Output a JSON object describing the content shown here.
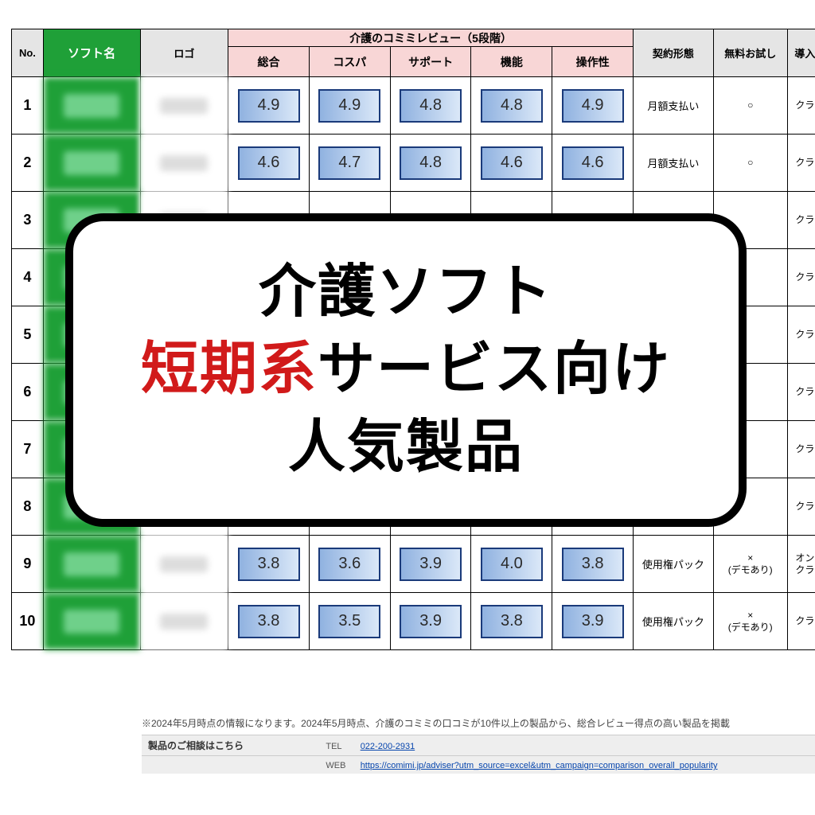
{
  "table": {
    "headers": {
      "no": "No.",
      "soft_name": "ソフト名",
      "logo": "ロゴ",
      "review_group": "介護のコミミレビュー（5段階）",
      "overall": "総合",
      "cost": "コスパ",
      "support": "サポート",
      "function": "機能",
      "usability": "操作性",
      "contract": "契約形態",
      "trial": "無料お試し",
      "deploy": "導入"
    },
    "rows": [
      {
        "no": "1",
        "scores": [
          "4.9",
          "4.9",
          "4.8",
          "4.8",
          "4.9"
        ],
        "contract": "月額支払い",
        "trial": "○",
        "deploy": "クラ"
      },
      {
        "no": "2",
        "scores": [
          "4.6",
          "4.7",
          "4.8",
          "4.6",
          "4.6"
        ],
        "contract": "月額支払い",
        "trial": "○",
        "deploy": "クラ"
      },
      {
        "no": "3",
        "scores": [
          "",
          "",
          "",
          "",
          ""
        ],
        "contract": "",
        "trial": "",
        "deploy": "クラ"
      },
      {
        "no": "4",
        "scores": [
          "",
          "",
          "",
          "",
          ""
        ],
        "contract": "",
        "trial": "",
        "deploy": "クラ"
      },
      {
        "no": "5",
        "scores": [
          "",
          "",
          "",
          "",
          ""
        ],
        "contract": "",
        "trial": "",
        "deploy": "クラ"
      },
      {
        "no": "6",
        "scores": [
          "",
          "",
          "",
          "",
          ""
        ],
        "contract": "",
        "trial": "",
        "deploy": "クラ"
      },
      {
        "no": "7",
        "scores": [
          "",
          "",
          "",
          "",
          ""
        ],
        "contract": "",
        "trial": "",
        "deploy": "クラ"
      },
      {
        "no": "8",
        "scores": [
          "",
          "",
          "",
          "",
          ""
        ],
        "contract": "",
        "trial": "",
        "deploy": "クラ"
      },
      {
        "no": "9",
        "scores": [
          "3.8",
          "3.6",
          "3.9",
          "4.0",
          "3.8"
        ],
        "contract": "使用権パック",
        "trial": "×\n(デモあり)",
        "deploy": "オン\nクラ"
      },
      {
        "no": "10",
        "scores": [
          "3.8",
          "3.5",
          "3.9",
          "3.8",
          "3.9"
        ],
        "contract": "使用権パック",
        "trial": "×\n(デモあり)",
        "deploy": "クラ"
      }
    ]
  },
  "footer": {
    "note": "※2024年5月時点の情報になります。2024年5月時点、介護のコミミの口コミが10件以上の製品から、総合レビュー得点の高い製品を掲載",
    "contact_label": "製品のご相談はこちら",
    "tel_label": "TEL",
    "tel": "022-200-2931",
    "web_label": "WEB",
    "web": "https://comimi.jp/adviser?utm_source=excel&utm_campaign=comparison_overall_popularity"
  },
  "overlay": {
    "line1": "介護ソフト",
    "line2_emph": "短期系",
    "line2_rest": "サービス向け",
    "line3": "人気製品"
  },
  "colors": {
    "green": "#1fa038",
    "pink": "#f8d6d6",
    "score_border": "#1a3a7a",
    "score_grad_from": "#90b2e0",
    "score_grad_to": "#dbe8f8",
    "emph": "#d11a1a"
  }
}
